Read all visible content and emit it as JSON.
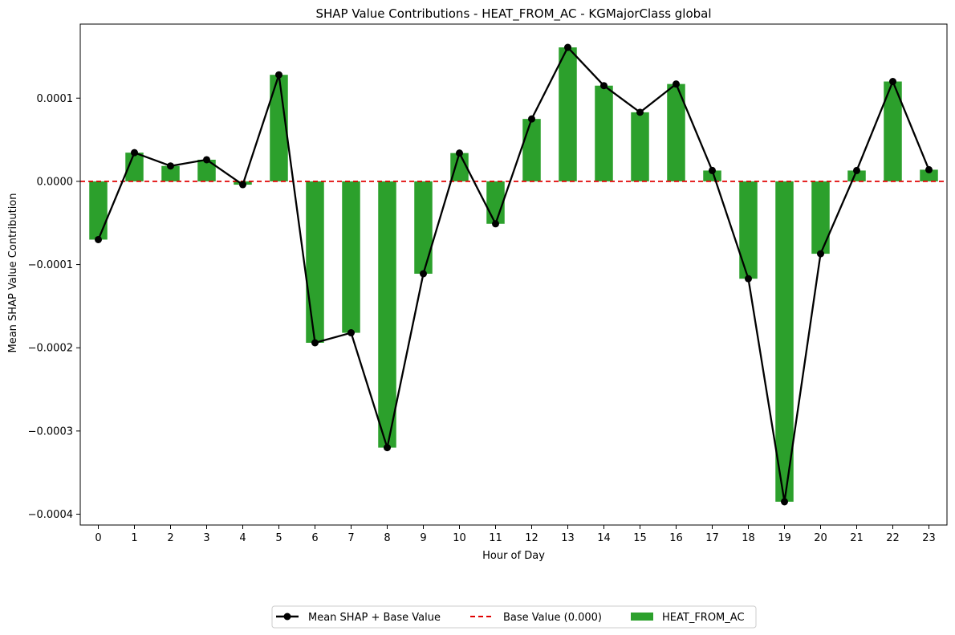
{
  "chart_data": {
    "type": "bar",
    "title": "SHAP Value Contributions - HEAT_FROM_AC - KGMajorClass global",
    "xlabel": "Hour of Day",
    "ylabel": "Mean SHAP Value Contribution",
    "categories": [
      "0",
      "1",
      "2",
      "3",
      "4",
      "5",
      "6",
      "7",
      "8",
      "9",
      "10",
      "11",
      "12",
      "13",
      "14",
      "15",
      "16",
      "17",
      "18",
      "19",
      "20",
      "21",
      "22",
      "23"
    ],
    "ylim": [
      -0.000413,
      0.000189
    ],
    "yticks": [
      -0.0004,
      -0.0003,
      -0.0002,
      -0.0001,
      0.0,
      0.0001
    ],
    "ytick_labels": [
      "−0.0004",
      "−0.0003",
      "−0.0002",
      "−0.0001",
      "0.0000",
      "0.0001"
    ],
    "grid": false,
    "legend_position": "bottom-center",
    "series": [
      {
        "name": "HEAT_FROM_AC",
        "kind": "bar",
        "color": "#2ca02c",
        "values": [
          -7e-05,
          3.45e-05,
          1.85e-05,
          2.6e-05,
          -4e-06,
          0.000128,
          -0.000194,
          -0.000182,
          -0.00032,
          -0.000111,
          3.4e-05,
          -5.1e-05,
          7.5e-05,
          0.000161,
          0.000115,
          8.3e-05,
          0.000117,
          1.3e-05,
          -0.000117,
          -0.000385,
          -8.7e-05,
          1.3e-05,
          0.00012,
          1.4e-05
        ]
      },
      {
        "name": "Mean SHAP + Base Value",
        "kind": "line",
        "color": "#000000",
        "values": [
          -7e-05,
          3.45e-05,
          1.85e-05,
          2.6e-05,
          -4e-06,
          0.000128,
          -0.000194,
          -0.000182,
          -0.00032,
          -0.000111,
          3.4e-05,
          -5.1e-05,
          7.5e-05,
          0.000161,
          0.000115,
          8.3e-05,
          0.000117,
          1.3e-05,
          -0.000117,
          -0.000385,
          -8.7e-05,
          1.3e-05,
          0.00012,
          1.4e-05
        ]
      },
      {
        "name": "Base Value (0.000)",
        "kind": "hline",
        "color": "#e00000",
        "value": 0.0
      }
    ]
  }
}
